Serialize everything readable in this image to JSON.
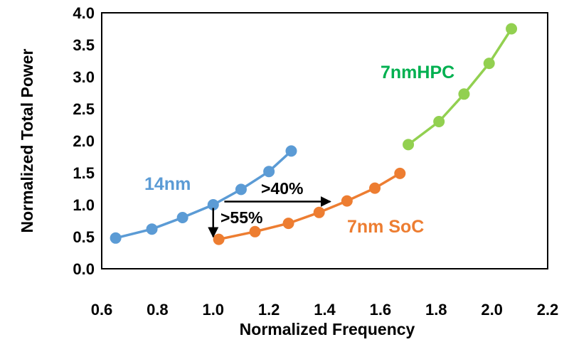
{
  "chart_data": {
    "type": "line",
    "title": "",
    "xlabel": "Normalized Frequency",
    "ylabel": "Normalized Total Power",
    "xlim": [
      0.6,
      2.2
    ],
    "ylim": [
      0.0,
      4.0
    ],
    "xticks": [
      "0.6",
      "0.8",
      "1.0",
      "1.2",
      "1.4",
      "1.6",
      "1.8",
      "2.0",
      "2.2"
    ],
    "yticks": [
      "0.0",
      "0.5",
      "1.0",
      "1.5",
      "2.0",
      "2.5",
      "3.0",
      "3.5",
      "4.0"
    ],
    "grid": false,
    "series": [
      {
        "name": "14nm",
        "color": "#5b9bd5",
        "x": [
          0.65,
          0.78,
          0.89,
          1.0,
          1.1,
          1.2,
          1.28
        ],
        "y": [
          0.48,
          0.62,
          0.8,
          1.0,
          1.24,
          1.52,
          1.84
        ]
      },
      {
        "name": "7nm SoC",
        "color": "#ed7d31",
        "x": [
          1.02,
          1.15,
          1.27,
          1.38,
          1.48,
          1.58,
          1.67
        ],
        "y": [
          0.46,
          0.58,
          0.71,
          0.88,
          1.06,
          1.26,
          1.49
        ]
      },
      {
        "name": "7nmHPC",
        "color": "#92d050",
        "x": [
          1.7,
          1.81,
          1.9,
          1.99,
          2.07
        ],
        "y": [
          1.94,
          2.3,
          2.73,
          3.21,
          3.75
        ]
      }
    ],
    "annotations": [
      {
        "text": ">40%",
        "from": [
          1.04,
          1.05
        ],
        "to": [
          1.42,
          1.05
        ]
      },
      {
        "text": ">55%",
        "from": [
          1.0,
          0.95
        ],
        "to": [
          1.0,
          0.5
        ]
      }
    ]
  }
}
